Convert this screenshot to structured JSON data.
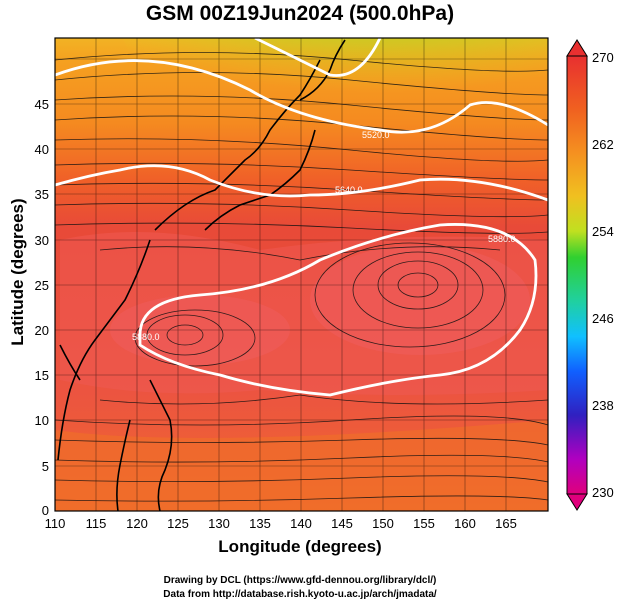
{
  "title": "GSM 00Z19Jun2024 (500.0hPa)",
  "x_axis": {
    "label": "Longitude (degrees)",
    "ticks": [
      110,
      115,
      120,
      125,
      130,
      135,
      140,
      145,
      150,
      155,
      160,
      165
    ],
    "range": [
      110,
      170
    ]
  },
  "y_axis": {
    "label": "Latitude  (degrees)",
    "ticks": [
      0,
      5,
      10,
      15,
      20,
      25,
      30,
      35,
      40,
      45
    ],
    "range": [
      0,
      52
    ]
  },
  "colorbar": {
    "ticks": [
      270,
      262,
      254,
      246,
      238,
      230
    ],
    "range": [
      230,
      270
    ],
    "colors": [
      "#e0007c",
      "#b000c0",
      "#3020c0",
      "#1060ff",
      "#10c0ff",
      "#20d0a0",
      "#30d030",
      "#70e020",
      "#c0e020",
      "#f0c020",
      "#f59020",
      "#f06020",
      "#e83030"
    ]
  },
  "contours": [
    {
      "label": "5520.0"
    },
    {
      "label": "5640.0"
    },
    {
      "label": "5880.0"
    },
    {
      "label": "5880.0"
    }
  ],
  "credits": {
    "line1": "Drawing by DCL (https://www.gfd-dennou.org/library/dcl/)",
    "line2": "Data from http://database.rish.kyoto-u.ac.jp/arch/jmadata/"
  }
}
